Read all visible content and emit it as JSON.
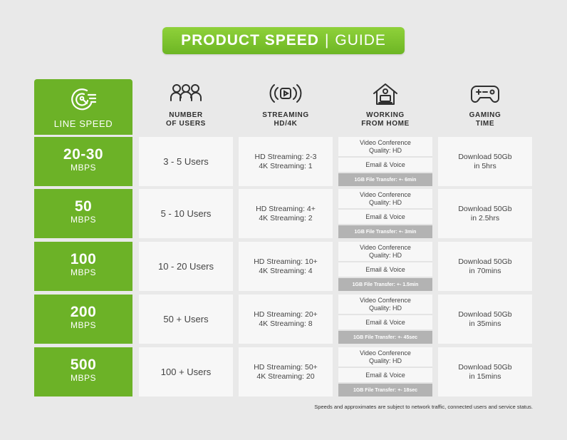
{
  "title": {
    "bold": "PRODUCT SPEED",
    "sep": "|",
    "light": "GUIDE"
  },
  "line_speed_header": "LINE SPEED",
  "columns": [
    {
      "icon": "users-icon",
      "line1": "NUMBER",
      "line2": "OF USERS"
    },
    {
      "icon": "streaming-icon",
      "line1": "STREAMING",
      "line2": "HD/4K"
    },
    {
      "icon": "home-laptop-icon",
      "line1": "WORKING",
      "line2": "FROM HOME"
    },
    {
      "icon": "gamepad-icon",
      "line1": "GAMING",
      "line2": "TIME"
    }
  ],
  "rows": [
    {
      "speed": "20-30",
      "unit": "MBPS",
      "users": "3 - 5 Users",
      "hd": "HD Streaming: 2-3",
      "k4": "4K Streaming: 1",
      "vc1": "Video Conference",
      "vc2": "Quality: HD",
      "email": "Email & Voice",
      "transfer": "1GB File Transfer:  +- 6min",
      "game1": "Download 50Gb",
      "game2": "in 5hrs"
    },
    {
      "speed": "50",
      "unit": "MBPS",
      "users": "5 - 10 Users",
      "hd": "HD Streaming: 4+",
      "k4": "4K Streaming: 2",
      "vc1": "Video Conference",
      "vc2": "Quality: HD",
      "email": "Email & Voice",
      "transfer": "1GB File Transfer:  +- 3min",
      "game1": "Download 50Gb",
      "game2": "in 2.5hrs"
    },
    {
      "speed": "100",
      "unit": "MBPS",
      "users": "10 - 20 Users",
      "hd": "HD Streaming: 10+",
      "k4": "4K Streaming: 4",
      "vc1": "Video Conference",
      "vc2": "Quality: HD",
      "email": "Email & Voice",
      "transfer": "1GB File Transfer:  +- 1.5min",
      "game1": "Download 50Gb",
      "game2": "in 70mins"
    },
    {
      "speed": "200",
      "unit": "MBPS",
      "users": "50 + Users",
      "hd": "HD Streaming: 20+",
      "k4": "4K Streaming: 8",
      "vc1": "Video Conference",
      "vc2": "Quality: HD",
      "email": "Email & Voice",
      "transfer": "1GB File Transfer:  +- 45sec",
      "game1": "Download 50Gb",
      "game2": "in 35mins"
    },
    {
      "speed": "500",
      "unit": "MBPS",
      "users": "100 + Users",
      "hd": "HD Streaming: 50+",
      "k4": "4K Streaming: 20",
      "vc1": "Video Conference",
      "vc2": "Quality: HD",
      "email": "Email & Voice",
      "transfer": "1GB File Transfer:  +- 18sec",
      "game1": "Download 50Gb",
      "game2": "in 15mins"
    }
  ],
  "footnote": "Speeds and approximates are subject to network traffic, connected users and service status.",
  "colors": {
    "green": "#6cb227",
    "title_green": "#7ec52f",
    "cell_bg": "#f7f7f7",
    "transfer_bg": "#b3b3b3",
    "page_bg": "#e9e9e9"
  }
}
